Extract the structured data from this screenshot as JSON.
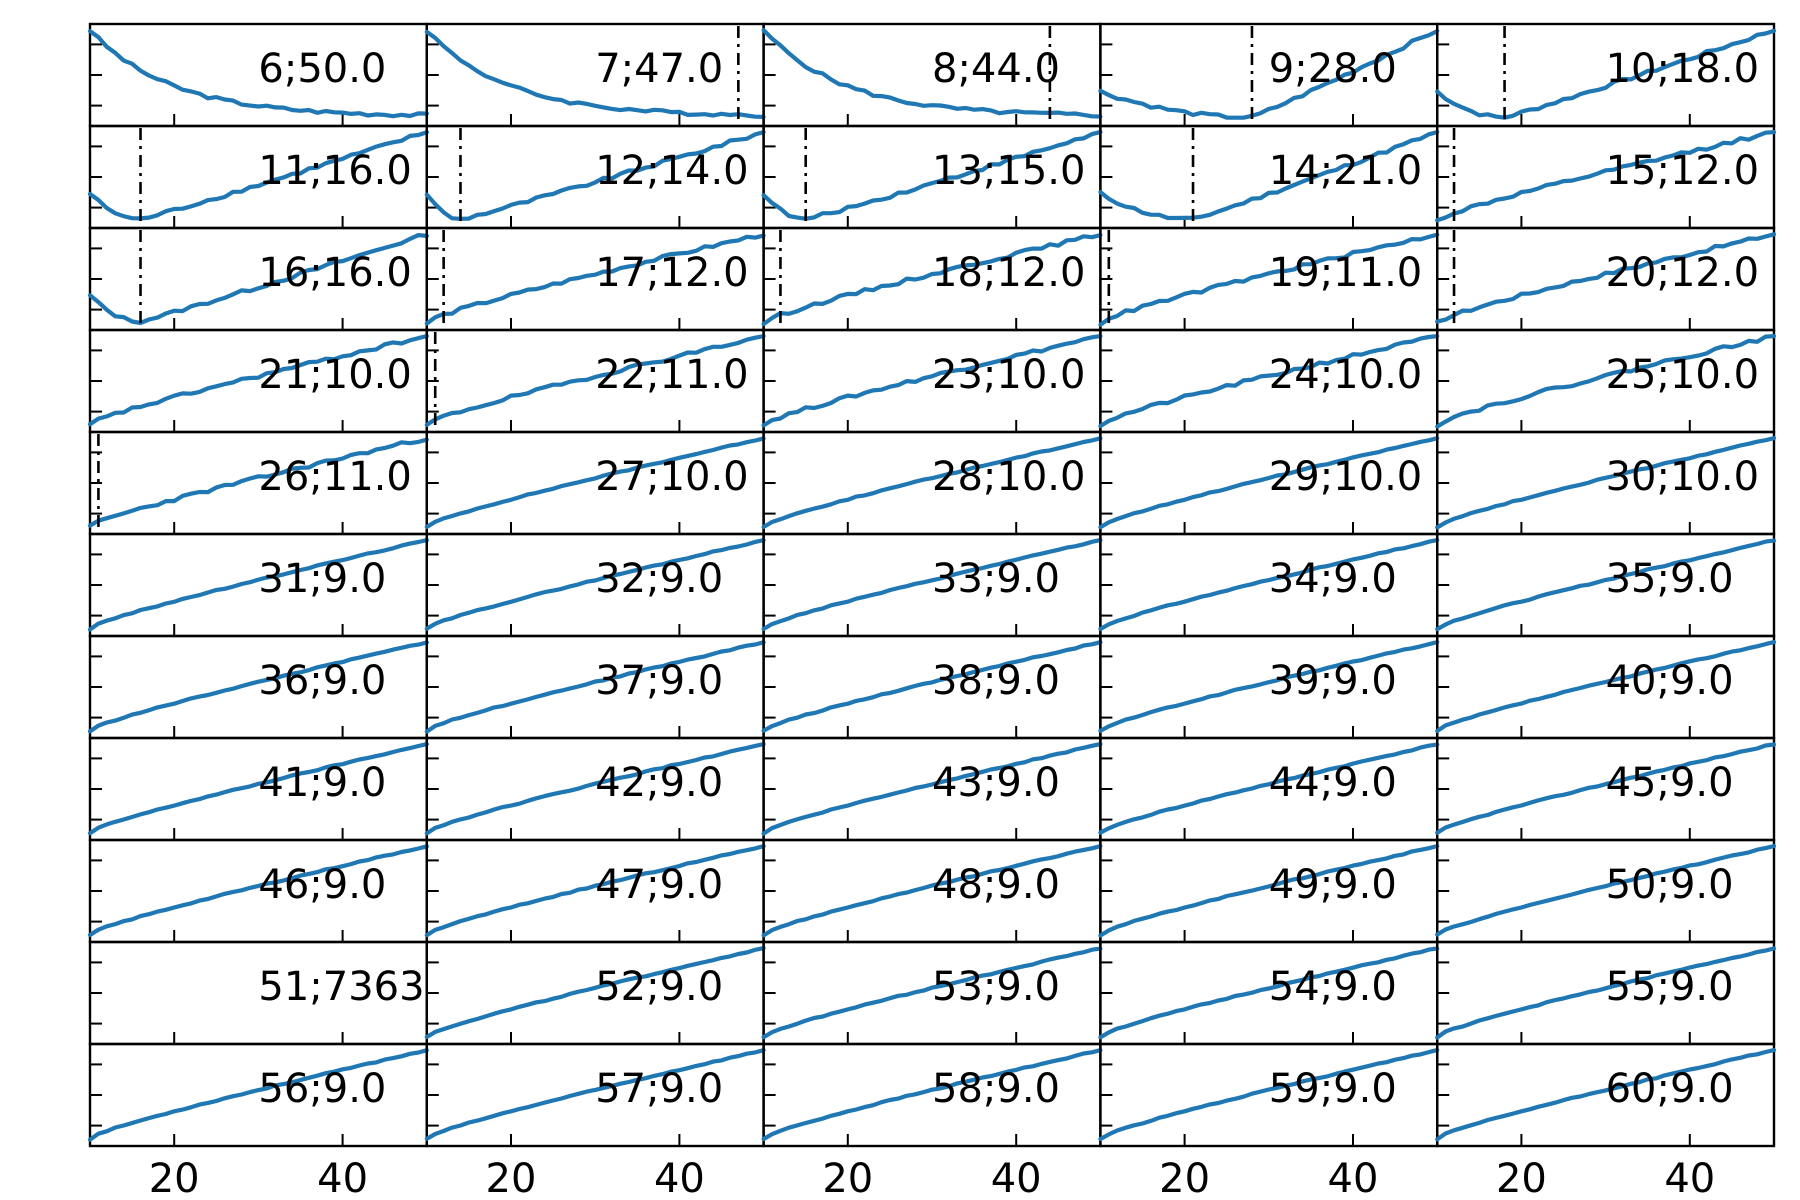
{
  "chart_data": {
    "type": "line",
    "layout": "small-multiples",
    "rows": 11,
    "cols": 5,
    "xlim": [
      10,
      50
    ],
    "xticks": [
      20,
      40
    ],
    "xtick_labels": [
      "20",
      "40"
    ],
    "x_step": 1,
    "line_color": "#1f77b4",
    "marker_color": "#000000",
    "panels": [
      {
        "label": "6;50.0",
        "trend": "decreasing",
        "marker": null
      },
      {
        "label": "7;47.0",
        "trend": "decreasing",
        "marker": 47
      },
      {
        "label": "8;44.0",
        "trend": "decreasing",
        "marker": 44
      },
      {
        "label": "9;28.0",
        "trend": "valley",
        "marker": 28
      },
      {
        "label": "10;18.0",
        "trend": "valley",
        "marker": 18
      },
      {
        "label": "11;16.0",
        "trend": "valley",
        "marker": 16
      },
      {
        "label": "12;14.0",
        "trend": "valley",
        "marker": 14
      },
      {
        "label": "13;15.0",
        "trend": "valley",
        "marker": 15
      },
      {
        "label": "14;21.0",
        "trend": "valley",
        "marker": 21
      },
      {
        "label": "15;12.0",
        "trend": "increasing",
        "marker": 12
      },
      {
        "label": "16;16.0",
        "trend": "valley",
        "marker": 16
      },
      {
        "label": "17;12.0",
        "trend": "increasing",
        "marker": 12
      },
      {
        "label": "18;12.0",
        "trend": "increasing",
        "marker": 12
      },
      {
        "label": "19;11.0",
        "trend": "increasing",
        "marker": 11
      },
      {
        "label": "20;12.0",
        "trend": "increasing",
        "marker": 12
      },
      {
        "label": "21;10.0",
        "trend": "increasing",
        "marker": null
      },
      {
        "label": "22;11.0",
        "trend": "increasing",
        "marker": 11
      },
      {
        "label": "23;10.0",
        "trend": "increasing",
        "marker": null
      },
      {
        "label": "24;10.0",
        "trend": "increasing",
        "marker": null
      },
      {
        "label": "25;10.0",
        "trend": "increasing",
        "marker": null
      },
      {
        "label": "26;11.0",
        "trend": "increasing",
        "marker": 11
      },
      {
        "label": "27;10.0",
        "trend": "increasing",
        "marker": null
      },
      {
        "label": "28;10.0",
        "trend": "increasing",
        "marker": null
      },
      {
        "label": "29;10.0",
        "trend": "increasing",
        "marker": null
      },
      {
        "label": "30;10.0",
        "trend": "increasing",
        "marker": null
      },
      {
        "label": "31;9.0",
        "trend": "increasing",
        "marker": null
      },
      {
        "label": "32;9.0",
        "trend": "increasing",
        "marker": null
      },
      {
        "label": "33;9.0",
        "trend": "increasing",
        "marker": null
      },
      {
        "label": "34;9.0",
        "trend": "increasing",
        "marker": null
      },
      {
        "label": "35;9.0",
        "trend": "increasing",
        "marker": null
      },
      {
        "label": "36;9.0",
        "trend": "increasing",
        "marker": null
      },
      {
        "label": "37;9.0",
        "trend": "increasing",
        "marker": null
      },
      {
        "label": "38;9.0",
        "trend": "increasing",
        "marker": null
      },
      {
        "label": "39;9.0",
        "trend": "increasing",
        "marker": null
      },
      {
        "label": "40;9.0",
        "trend": "increasing",
        "marker": null
      },
      {
        "label": "41;9.0",
        "trend": "increasing",
        "marker": null
      },
      {
        "label": "42;9.0",
        "trend": "increasing",
        "marker": null
      },
      {
        "label": "43;9.0",
        "trend": "increasing",
        "marker": null
      },
      {
        "label": "44;9.0",
        "trend": "increasing",
        "marker": null
      },
      {
        "label": "45;9.0",
        "trend": "increasing",
        "marker": null
      },
      {
        "label": "46;9.0",
        "trend": "increasing",
        "marker": null
      },
      {
        "label": "47;9.0",
        "trend": "increasing",
        "marker": null
      },
      {
        "label": "48;9.0",
        "trend": "increasing",
        "marker": null
      },
      {
        "label": "49;9.0",
        "trend": "increasing",
        "marker": null
      },
      {
        "label": "50;9.0",
        "trend": "increasing",
        "marker": null
      },
      {
        "label": "51;7363",
        "trend": "empty",
        "marker": null
      },
      {
        "label": "52;9.0",
        "trend": "increasing",
        "marker": null
      },
      {
        "label": "53;9.0",
        "trend": "increasing",
        "marker": null
      },
      {
        "label": "54;9.0",
        "trend": "increasing",
        "marker": null
      },
      {
        "label": "55;9.0",
        "trend": "increasing",
        "marker": null
      },
      {
        "label": "56;9.0",
        "trend": "increasing",
        "marker": null
      },
      {
        "label": "57;9.0",
        "trend": "increasing",
        "marker": null
      },
      {
        "label": "58;9.0",
        "trend": "increasing",
        "marker": null
      },
      {
        "label": "59;9.0",
        "trend": "increasing",
        "marker": null
      },
      {
        "label": "60;9.0",
        "trend": "increasing",
        "marker": null
      }
    ]
  }
}
